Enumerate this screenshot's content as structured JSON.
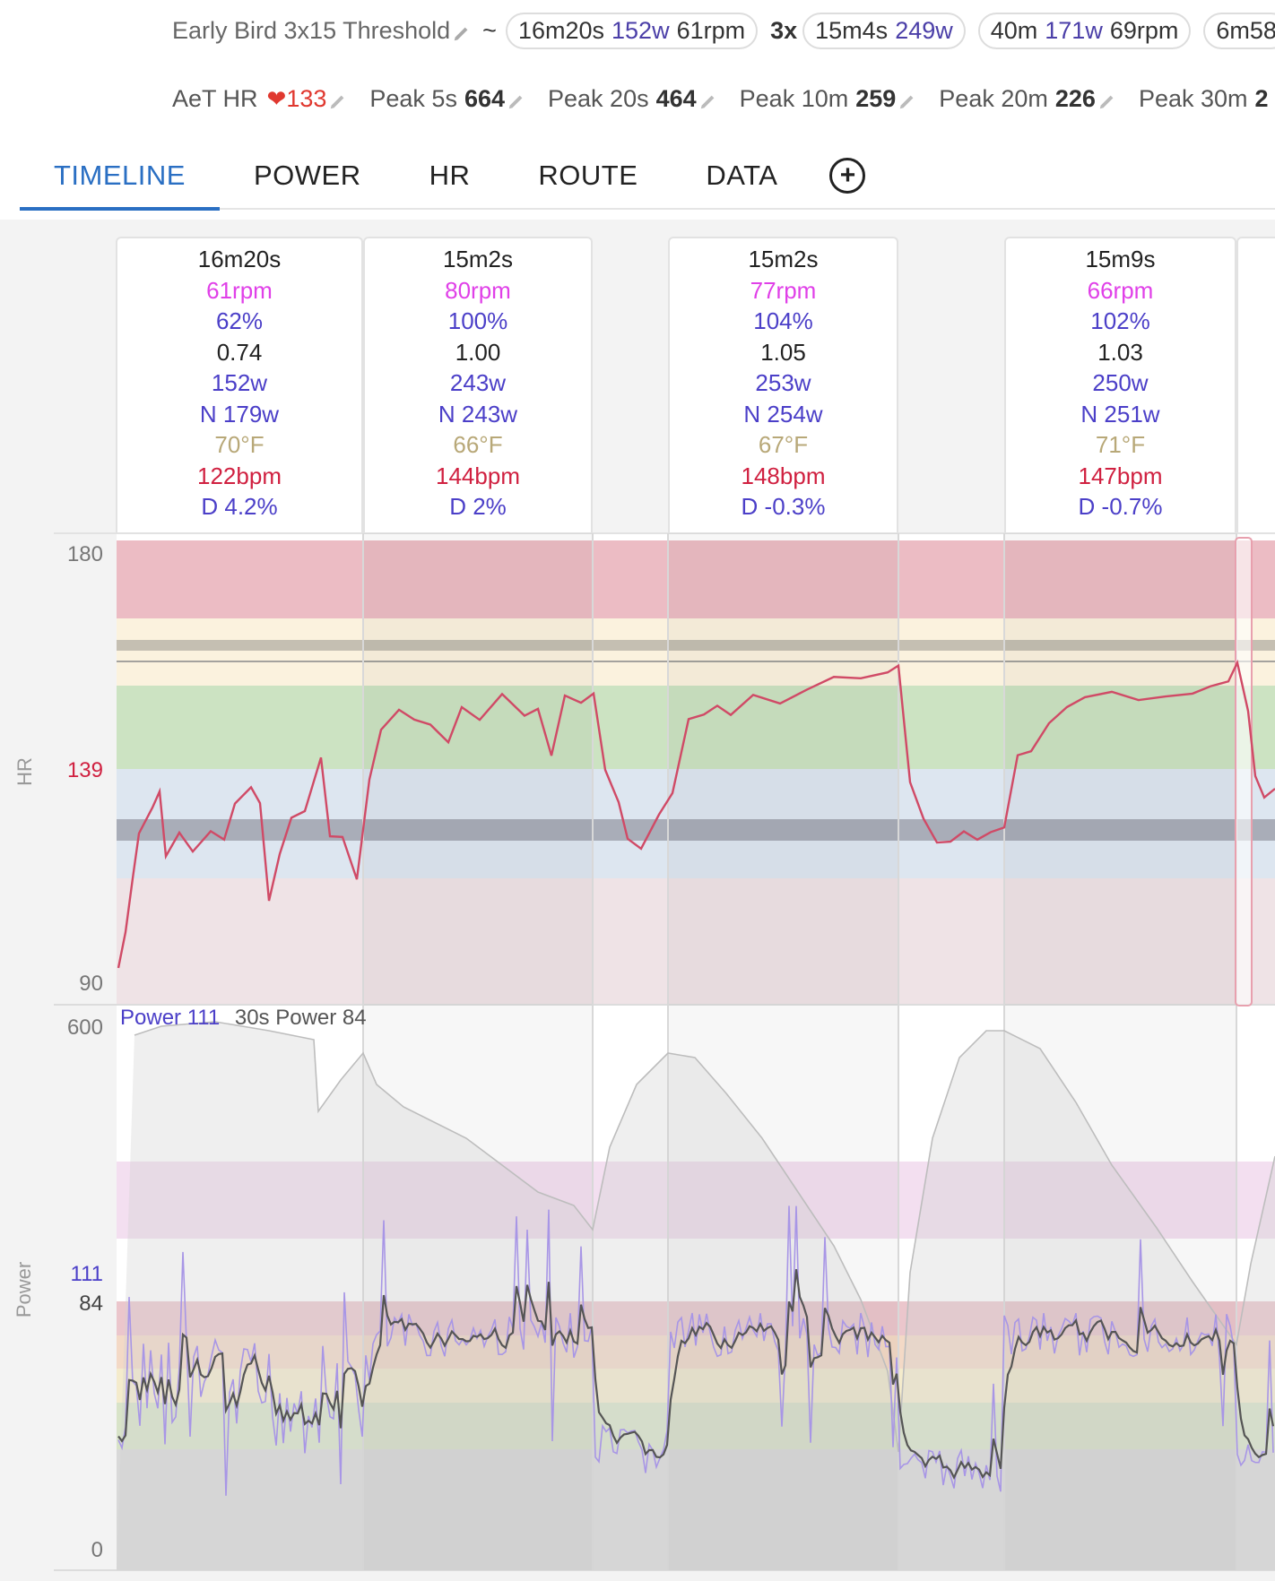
{
  "header": {
    "title": "Early Bird 3x15 Threshold",
    "separator": "~",
    "pills": [
      {
        "dur": "16m20s",
        "watts": "152w",
        "rpm": "61rpm"
      },
      {
        "multiplier": "3x",
        "dur": "15m4s",
        "watts": "249w",
        "rpm": ""
      },
      {
        "dur": "40m",
        "watts": "171w",
        "rpm": "69rpm"
      },
      {
        "dur": "6m58",
        "watts": "",
        "rpm": ""
      }
    ],
    "stats": [
      {
        "label": "AeT HR",
        "value": "133",
        "heart": true
      },
      {
        "label": "Peak 5s",
        "value": "664"
      },
      {
        "label": "Peak 20s",
        "value": "464"
      },
      {
        "label": "Peak 10m",
        "value": "259"
      },
      {
        "label": "Peak 20m",
        "value": "226"
      },
      {
        "label": "Peak 30m",
        "value": "2"
      }
    ]
  },
  "tabs": [
    {
      "label": "TIMELINE",
      "active": true
    },
    {
      "label": "POWER"
    },
    {
      "label": "HR"
    },
    {
      "label": "ROUTE"
    },
    {
      "label": "DATA"
    }
  ],
  "intervals": [
    {
      "dur": "16m20s",
      "rpm": "61rpm",
      "pct": "62%",
      "if": "0.74",
      "watts": "152w",
      "np": "N 179w",
      "temp": "70°F",
      "hr": "122bpm",
      "drift": "D 4.2%"
    },
    {
      "dur": "15m2s",
      "rpm": "80rpm",
      "pct": "100%",
      "if": "1.00",
      "watts": "243w",
      "np": "N 243w",
      "temp": "66°F",
      "hr": "144bpm",
      "drift": "D 2%"
    },
    {
      "dur": "15m2s",
      "rpm": "77rpm",
      "pct": "104%",
      "if": "1.05",
      "watts": "253w",
      "np": "N 254w",
      "temp": "67°F",
      "hr": "148bpm",
      "drift": "D -0.3%"
    },
    {
      "dur": "15m9s",
      "rpm": "66rpm",
      "pct": "102%",
      "if": "1.03",
      "watts": "250w",
      "np": "N 251w",
      "temp": "71°F",
      "hr": "147bpm",
      "drift": "D -0.7%"
    }
  ],
  "hr_chart": {
    "axis_name": "HR",
    "ticks": [
      "180",
      "139",
      "90"
    ],
    "ymin": 90,
    "ymax": 180,
    "current": 139,
    "current_color": "#d02040"
  },
  "power_chart": {
    "axis_name": "Power",
    "ticks": [
      "600",
      "111",
      "84",
      "0"
    ],
    "ymax": 600,
    "current_color": "#4b3fc8",
    "legend_power_label": "Power",
    "legend_power_value": "111",
    "legend_30s_label": "30s Power",
    "legend_30s_value": "84"
  },
  "colors": {
    "accent": "#2a6fc3",
    "hr_line": "#d04060",
    "power_line": "#9b88e0",
    "power_30s": "#555555"
  }
}
